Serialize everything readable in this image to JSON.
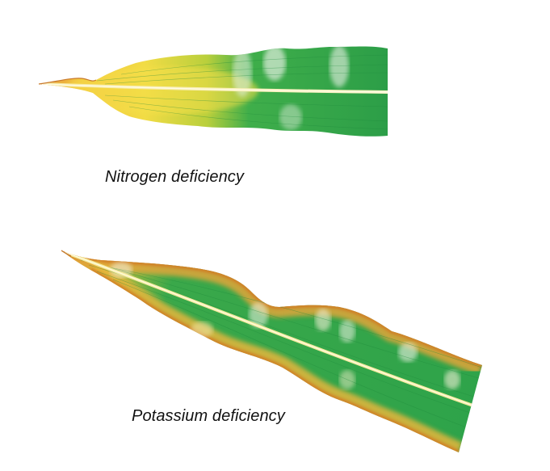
{
  "captions": {
    "nitrogen": "Nitrogen deficiency",
    "potassium": "Potassium deficiency"
  },
  "colors": {
    "background": "#ffffff",
    "leaf_green": "#2ea34a",
    "chlorosis_yellow": "#f2d43a",
    "necrosis_orange": "#d9882a",
    "caption_text": "#111111"
  }
}
